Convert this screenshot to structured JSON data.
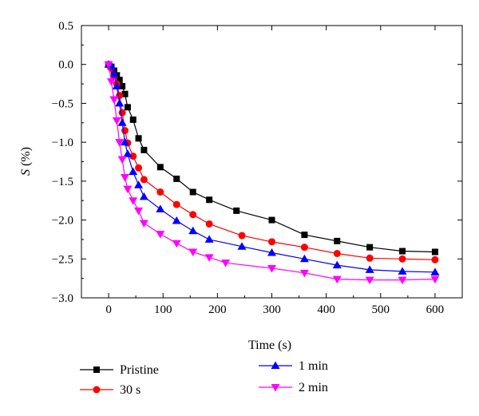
{
  "chart_data": {
    "type": "line",
    "xlabel": "Time (s)",
    "ylabel_var": "S",
    "ylabel_unit": " (%)",
    "xlim": [
      -50,
      650
    ],
    "ylim": [
      -3.0,
      0.5
    ],
    "x_ticks": [
      0,
      100,
      200,
      300,
      400,
      500,
      600
    ],
    "y_ticks": [
      0.5,
      0.0,
      -0.5,
      -1.0,
      -1.5,
      -2.0,
      -2.5,
      -3.0
    ],
    "y_tick_labels": [
      "0.5",
      "0.0",
      "−0.5",
      "−1.0",
      "−1.5",
      "−2.0",
      "−2.5",
      "−3.0"
    ],
    "grid": false,
    "legend_position": "bottom",
    "series": [
      {
        "name": "Pristine",
        "color": "#000000",
        "marker": "square",
        "x": [
          0,
          5,
          10,
          15,
          20,
          25,
          30,
          35,
          45,
          55,
          65,
          95,
          125,
          155,
          185,
          235,
          300,
          360,
          420,
          480,
          540,
          600
        ],
        "y": [
          0.0,
          -0.03,
          -0.08,
          -0.14,
          -0.2,
          -0.28,
          -0.38,
          -0.55,
          -0.71,
          -0.95,
          -1.1,
          -1.32,
          -1.47,
          -1.64,
          -1.74,
          -1.88,
          -2.0,
          -2.19,
          -2.27,
          -2.35,
          -2.4,
          -2.41
        ]
      },
      {
        "name": "30 s",
        "color": "#ff0000",
        "marker": "circle",
        "x": [
          0,
          5,
          10,
          15,
          20,
          25,
          30,
          35,
          45,
          55,
          65,
          95,
          125,
          155,
          185,
          245,
          300,
          360,
          420,
          480,
          540,
          600
        ],
        "y": [
          0.0,
          -0.05,
          -0.15,
          -0.25,
          -0.4,
          -0.62,
          -0.85,
          -1.01,
          -1.18,
          -1.33,
          -1.48,
          -1.64,
          -1.8,
          -1.93,
          -2.05,
          -2.2,
          -2.28,
          -2.35,
          -2.43,
          -2.49,
          -2.5,
          -2.51
        ]
      },
      {
        "name": "1 min",
        "color": "#0000ff",
        "marker": "triangle-up",
        "x": [
          0,
          5,
          10,
          15,
          20,
          25,
          30,
          35,
          45,
          55,
          65,
          95,
          125,
          155,
          185,
          245,
          300,
          360,
          420,
          480,
          540,
          600
        ],
        "y": [
          0.0,
          -0.02,
          -0.12,
          -0.28,
          -0.5,
          -0.75,
          -1.0,
          -1.15,
          -1.38,
          -1.55,
          -1.7,
          -1.86,
          -2.01,
          -2.14,
          -2.25,
          -2.34,
          -2.42,
          -2.5,
          -2.58,
          -2.64,
          -2.66,
          -2.67
        ]
      },
      {
        "name": "2 min",
        "color": "#ff00ff",
        "marker": "triangle-down",
        "x": [
          0,
          5,
          10,
          15,
          20,
          25,
          30,
          35,
          45,
          55,
          65,
          95,
          125,
          155,
          185,
          215,
          300,
          360,
          420,
          480,
          540,
          600
        ],
        "y": [
          0.0,
          -0.22,
          -0.45,
          -0.72,
          -1.0,
          -1.22,
          -1.45,
          -1.6,
          -1.75,
          -1.88,
          -2.04,
          -2.18,
          -2.3,
          -2.41,
          -2.48,
          -2.55,
          -2.62,
          -2.68,
          -2.76,
          -2.77,
          -2.77,
          -2.76
        ]
      }
    ]
  }
}
